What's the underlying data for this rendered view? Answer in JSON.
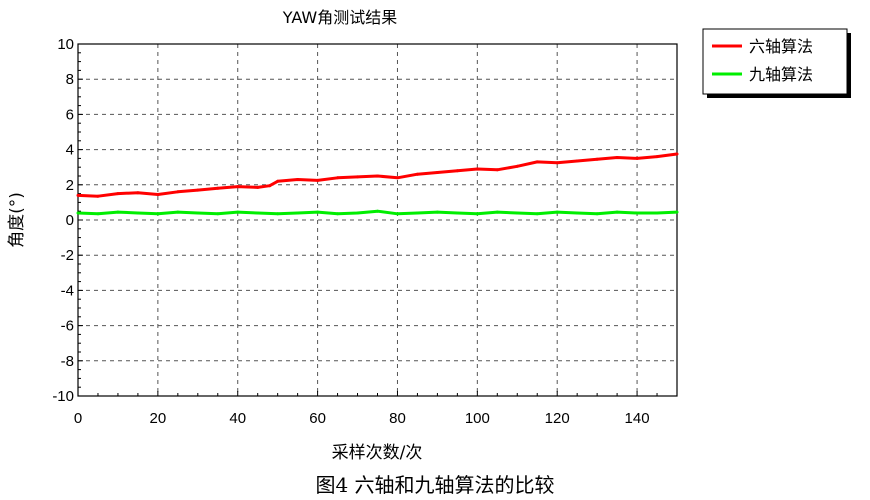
{
  "chart_data": {
    "type": "line",
    "title": "YAW角测试结果",
    "xlabel": "采样次数/次",
    "ylabel": "角度(°)",
    "xlim": [
      0,
      150
    ],
    "ylim": [
      -10,
      10
    ],
    "xticks": [
      "0",
      "20",
      "40",
      "60",
      "80",
      "100",
      "120",
      "140"
    ],
    "yticks": [
      "10",
      "8",
      "6",
      "4",
      "2",
      "0",
      "-2",
      "-4",
      "-6",
      "-8",
      "-10"
    ],
    "grid": true,
    "legend_position": "top-right outside",
    "series": [
      {
        "name": "六轴算法",
        "color": "#ff0000",
        "x": [
          0,
          5,
          10,
          15,
          20,
          25,
          30,
          35,
          40,
          45,
          48,
          50,
          55,
          60,
          65,
          70,
          75,
          80,
          85,
          90,
          95,
          100,
          105,
          110,
          115,
          120,
          125,
          130,
          135,
          140,
          145,
          150
        ],
        "values": [
          1.4,
          1.35,
          1.5,
          1.55,
          1.45,
          1.6,
          1.7,
          1.8,
          1.9,
          1.85,
          1.95,
          2.2,
          2.3,
          2.25,
          2.4,
          2.45,
          2.5,
          2.4,
          2.6,
          2.7,
          2.8,
          2.9,
          2.85,
          3.05,
          3.3,
          3.25,
          3.35,
          3.45,
          3.55,
          3.5,
          3.6,
          3.75
        ]
      },
      {
        "name": "九轴算法",
        "color": "#00ee00",
        "x": [
          0,
          5,
          10,
          15,
          20,
          25,
          30,
          35,
          40,
          45,
          50,
          55,
          60,
          65,
          70,
          75,
          80,
          85,
          90,
          95,
          100,
          105,
          110,
          115,
          120,
          125,
          130,
          135,
          140,
          145,
          150
        ],
        "values": [
          0.4,
          0.35,
          0.45,
          0.4,
          0.35,
          0.45,
          0.4,
          0.35,
          0.45,
          0.4,
          0.35,
          0.4,
          0.45,
          0.35,
          0.4,
          0.5,
          0.35,
          0.4,
          0.45,
          0.4,
          0.35,
          0.45,
          0.4,
          0.35,
          0.45,
          0.4,
          0.35,
          0.45,
          0.4,
          0.4,
          0.45
        ]
      }
    ]
  },
  "caption": "图4 六轴和九轴算法的比较"
}
